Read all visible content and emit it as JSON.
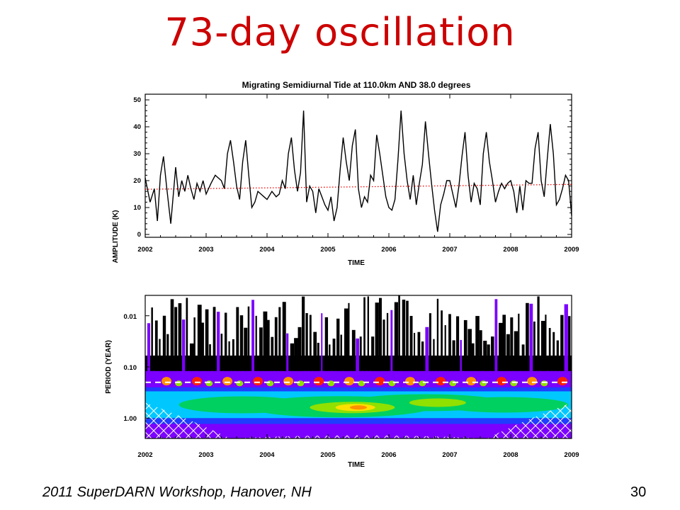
{
  "slide": {
    "title": "73-day oscillation",
    "footer": "2011 SuperDARN Workshop, Hanover, NH",
    "page_number": "30"
  },
  "chart_data": [
    {
      "type": "line",
      "title": "Migrating Semidiurnal Tide at 110.0km AND 38.0 degrees",
      "xlabel": "TIME",
      "ylabel": "AMPLITUDE (K)",
      "xlim": [
        2002,
        2009
      ],
      "ylim": [
        0,
        50
      ],
      "xticks": [
        "2002",
        "2003",
        "2004",
        "2005",
        "2006",
        "2007",
        "2008",
        "2009"
      ],
      "yticks": [
        "0",
        "10",
        "20",
        "30",
        "40",
        "50"
      ],
      "series": [
        {
          "color": "#000000",
          "x": [
            2002.0,
            2002.08,
            2002.15,
            2002.2,
            2002.25,
            2002.3,
            2002.35,
            2002.42,
            2002.5,
            2002.55,
            2002.6,
            2002.65,
            2002.7,
            2002.75,
            2002.8,
            2002.85,
            2002.9,
            2002.95,
            2003.0,
            2003.08,
            2003.15,
            2003.25,
            2003.3,
            2003.35,
            2003.4,
            2003.45,
            2003.5,
            2003.55,
            2003.6,
            2003.65,
            2003.7,
            2003.75,
            2003.8,
            2003.85,
            2003.9,
            2003.95,
            2004.0,
            2004.08,
            2004.15,
            2004.2,
            2004.25,
            2004.3,
            2004.35,
            2004.4,
            2004.45,
            2004.5,
            2004.55,
            2004.6,
            2004.65,
            2004.7,
            2004.75,
            2004.8,
            2004.85,
            2004.9,
            2004.95,
            2005.0,
            2005.05,
            2005.1,
            2005.15,
            2005.2,
            2005.25,
            2005.3,
            2005.35,
            2005.4,
            2005.45,
            2005.5,
            2005.55,
            2005.6,
            2005.65,
            2005.7,
            2005.75,
            2005.8,
            2005.85,
            2005.9,
            2005.95,
            2006.0,
            2006.05,
            2006.1,
            2006.15,
            2006.2,
            2006.25,
            2006.3,
            2006.35,
            2006.4,
            2006.45,
            2006.5,
            2006.55,
            2006.6,
            2006.65,
            2006.7,
            2006.75,
            2006.8,
            2006.85,
            2006.9,
            2006.95,
            2007.0,
            2007.05,
            2007.1,
            2007.15,
            2007.2,
            2007.25,
            2007.3,
            2007.35,
            2007.4,
            2007.45,
            2007.5,
            2007.55,
            2007.6,
            2007.65,
            2007.7,
            2007.75,
            2007.8,
            2007.85,
            2007.9,
            2007.95,
            2008.0,
            2008.05,
            2008.1,
            2008.15,
            2008.2,
            2008.25,
            2008.3,
            2008.35,
            2008.4,
            2008.45,
            2008.5,
            2008.55,
            2008.6,
            2008.65,
            2008.7,
            2008.75,
            2008.8,
            2008.85,
            2008.9,
            2008.95,
            2009.0
          ],
          "values": [
            21,
            12,
            17,
            5,
            22,
            29,
            18,
            4,
            25,
            14,
            20,
            16,
            22,
            17,
            13,
            19,
            16,
            20,
            15,
            19,
            22,
            20,
            17,
            30,
            35,
            27,
            18,
            13,
            27,
            35,
            22,
            10,
            12,
            16,
            15,
            14,
            13,
            16,
            14,
            15,
            20,
            17,
            30,
            36,
            24,
            16,
            23,
            46,
            12,
            18,
            16,
            8,
            17,
            14,
            11,
            9,
            14,
            5,
            10,
            24,
            36,
            27,
            20,
            33,
            39,
            17,
            10,
            14,
            12,
            22,
            20,
            37,
            30,
            22,
            14,
            10,
            9,
            13,
            28,
            46,
            30,
            20,
            13,
            22,
            11,
            19,
            26,
            42,
            30,
            19,
            9,
            1,
            11,
            15,
            20,
            20,
            15,
            10,
            18,
            29,
            38,
            22,
            12,
            19,
            17,
            11,
            30,
            38,
            27,
            20,
            12,
            16,
            19,
            17,
            19,
            20,
            16,
            8,
            18,
            9,
            20,
            19,
            19,
            32,
            38,
            20,
            14,
            28,
            41,
            30,
            11,
            13,
            17,
            22,
            20,
            7
          ]
        },
        {
          "color": "#ff0000",
          "style": "dotted",
          "x": [
            2002,
            2009
          ],
          "values": [
            16.8,
            18.6
          ]
        }
      ],
      "grid": false
    },
    {
      "type": "heatmap",
      "xlabel": "TIME",
      "ylabel": "PERIOD (YEAR)",
      "xlim": [
        2002,
        2009
      ],
      "yscale": "log",
      "ylim": [
        2.5,
        0.004
      ],
      "xticks": [
        "2002",
        "2003",
        "2004",
        "2005",
        "2006",
        "2007",
        "2008",
        "2009"
      ],
      "yticks": [
        "0.01",
        "0.10",
        "1.00"
      ],
      "reference_period": 0.2,
      "colors": [
        "#000000",
        "#7b00ff",
        "#1f3cff",
        "#00c8ff",
        "#00d060",
        "#90e000",
        "#ffe000",
        "#ff9000",
        "#ff2000"
      ]
    }
  ]
}
